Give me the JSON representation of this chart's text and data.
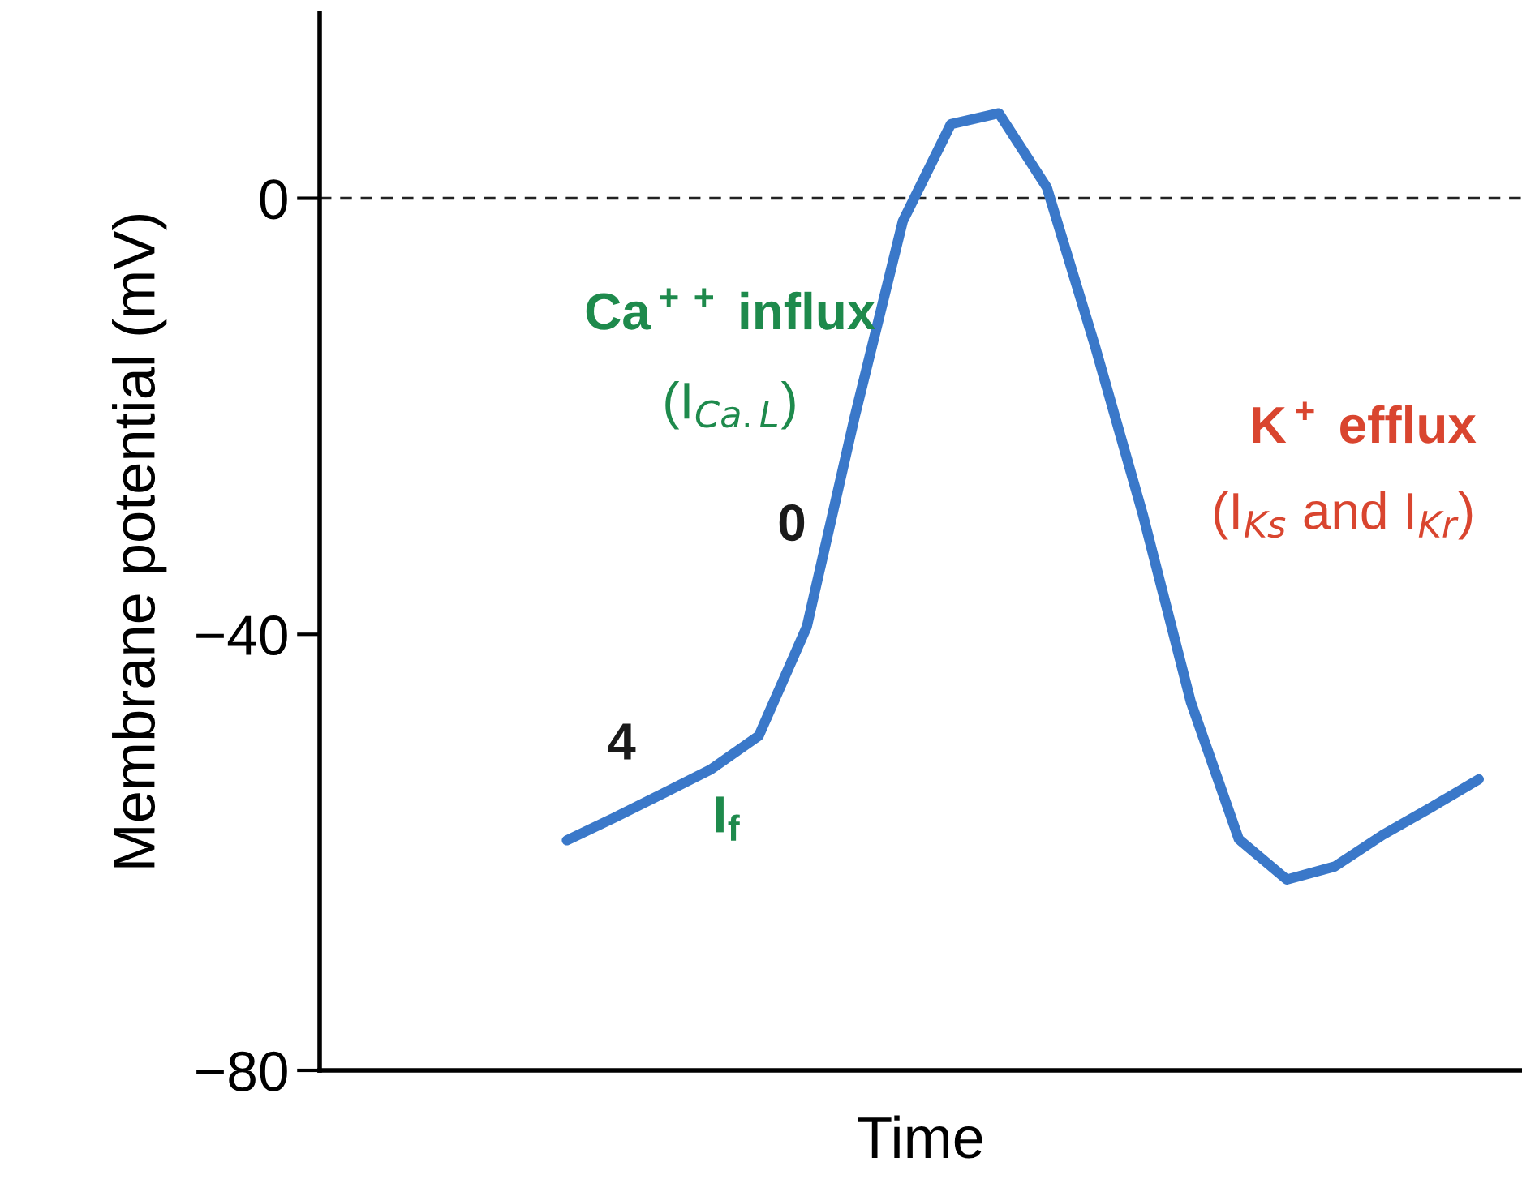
{
  "chart_data": {
    "type": "line",
    "xlabel": "Time",
    "ylabel": "Membrane potential (mV)",
    "categories": [
      null,
      null,
      null,
      null,
      null,
      null,
      null,
      null,
      null,
      null,
      null,
      null,
      null,
      null,
      null,
      null,
      null,
      null,
      null,
      null,
      null,
      null,
      null,
      null,
      null
    ],
    "series": [
      {
        "color": "#3a78c9",
        "values": [
          null,
          null,
          null,
          null,
          null,
          -58.9,
          -56.8,
          -54.6,
          -52.4,
          -49.3,
          -39.3,
          -20,
          -2.1,
          6.8,
          7.8,
          1.0,
          -13.5,
          -29,
          -46.2,
          -58.8,
          -62.5,
          -61.3,
          -58.4,
          -55.9,
          -53.3
        ]
      }
    ],
    "ylim": [
      -80,
      17
    ],
    "yticks": [
      {
        "value": -80,
        "label": "−80"
      },
      {
        "value": -40,
        "label": "−40"
      },
      0
    ],
    "ref_lines": [
      {
        "axis": "y",
        "value": 0,
        "color": "#222222",
        "line_style": "dashed"
      }
    ],
    "grid": false,
    "legend": false,
    "marker": "none",
    "line_style": "solid",
    "tick_labels": "y",
    "annotations": [
      "Ca$^{++}$ influx",
      "(I$_{Ca.L}$)",
      "0",
      "4",
      "I$_{f}$",
      "K$^{+}$ efflux",
      "(I$_{Ks}$ and I$_{Kr}$)"
    ]
  }
}
